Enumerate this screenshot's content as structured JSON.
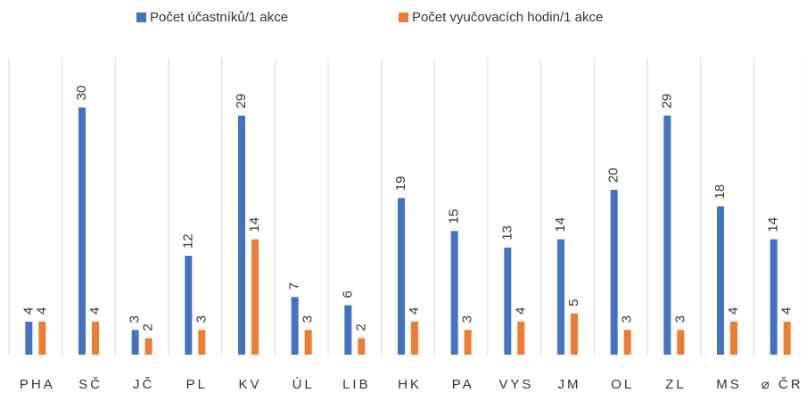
{
  "chart_data": {
    "type": "bar",
    "categories": [
      "PHA",
      "SČ",
      "JČ",
      "PL",
      "KV",
      "ÚL",
      "LIB",
      "HK",
      "PA",
      "VYS",
      "JM",
      "OL",
      "ZL",
      "MS",
      "⌀ ČR"
    ],
    "series": [
      {
        "name": "Počet účastníků/1 akce",
        "color": "#4472c4",
        "values": [
          4,
          30,
          3,
          12,
          29,
          7,
          6,
          19,
          15,
          13,
          14,
          20,
          29,
          18,
          14
        ]
      },
      {
        "name": "Počet vyučovacích hodin/1 akce",
        "color": "#ed7d31",
        "values": [
          4,
          4,
          2,
          3,
          14,
          3,
          2,
          4,
          3,
          4,
          5,
          3,
          3,
          4,
          4
        ]
      }
    ],
    "ylim": [
      0,
      36
    ],
    "legend": "top"
  }
}
